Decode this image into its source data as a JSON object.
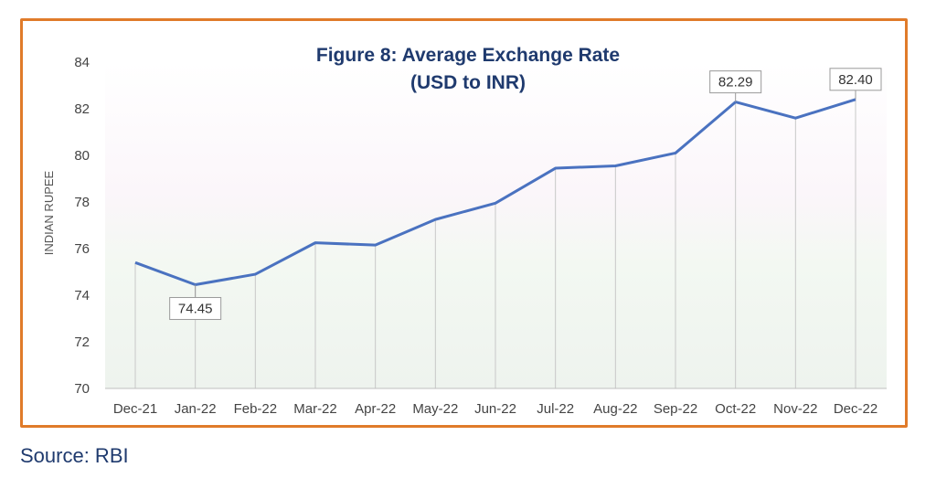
{
  "chart_data": {
    "type": "line",
    "title_line1": "Figure 8: Average Exchange Rate",
    "title_line2": "(USD to INR)",
    "ylabel": "INDIAN RUPEE",
    "xlabel": "",
    "ylim": [
      70,
      84
    ],
    "yticks": [
      70,
      72,
      74,
      76,
      78,
      80,
      82,
      84
    ],
    "categories": [
      "Dec-21",
      "Jan-22",
      "Feb-22",
      "Mar-22",
      "Apr-22",
      "May-22",
      "Jun-22",
      "Jul-22",
      "Aug-22",
      "Sep-22",
      "Oct-22",
      "Nov-22",
      "Dec-22"
    ],
    "series": [
      {
        "values": [
          75.4,
          74.45,
          74.9,
          76.25,
          76.15,
          77.25,
          77.95,
          79.45,
          79.55,
          80.1,
          82.29,
          81.6,
          82.4
        ],
        "color": "#4a72c0"
      }
    ],
    "annotations": [
      {
        "index": 1,
        "label": "74.45"
      },
      {
        "index": 10,
        "label": "82.29"
      },
      {
        "index": 12,
        "label": "82.40"
      }
    ],
    "grid": false,
    "legend": "none"
  },
  "footer": {
    "source": "Source: RBI"
  },
  "colors": {
    "frame": "#e07b2a",
    "title": "#1f3a6e",
    "line": "#4a72c0",
    "axis_text": "#444444"
  }
}
